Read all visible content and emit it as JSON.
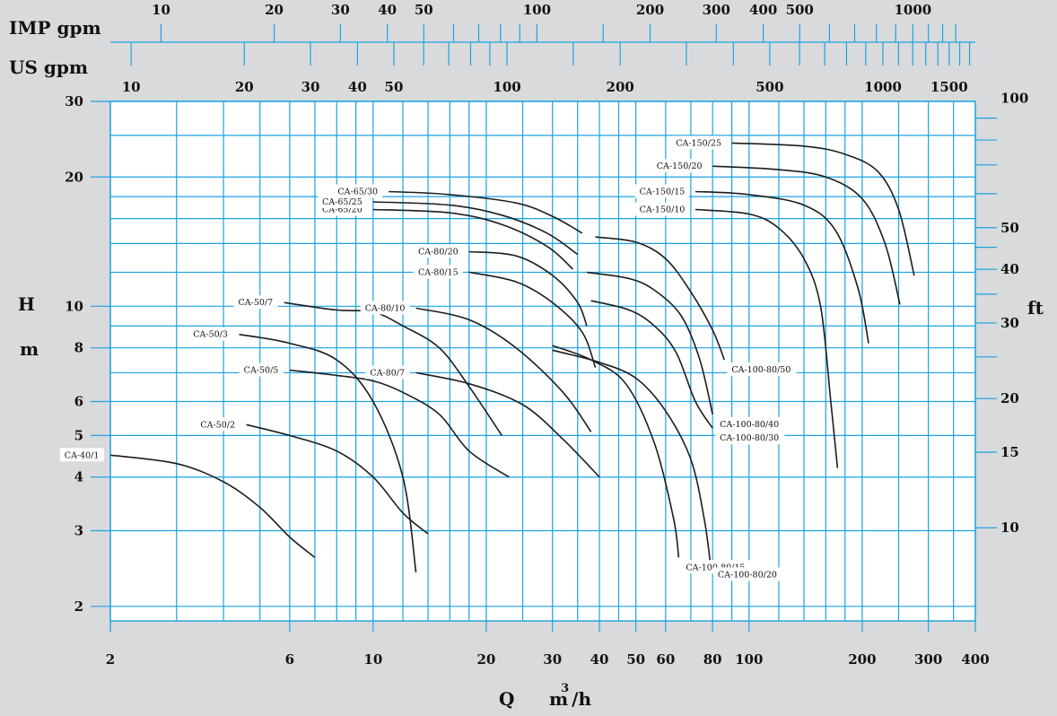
{
  "chart_data": {
    "type": "line",
    "grid": true,
    "x_scale": "log",
    "y_scale": "log",
    "x_label": "Q",
    "x_unit": "m",
    "x_unit_sup": "3",
    "x_unit_suffix": "/h",
    "y_label_left": "H",
    "y_unit_left": "m",
    "y_label_right": "ft",
    "xlim": [
      2,
      400
    ],
    "ylim": [
      1.85,
      30
    ],
    "x_ticks": [
      2,
      6,
      10,
      20,
      30,
      40,
      50,
      60,
      80,
      100,
      200,
      300,
      400
    ],
    "x_gridlines": [
      2,
      3,
      4,
      5,
      6,
      7,
      8,
      9,
      10,
      12,
      14,
      16,
      18,
      20,
      25,
      30,
      35,
      40,
      45,
      50,
      60,
      70,
      80,
      90,
      100,
      120,
      140,
      160,
      180,
      200,
      250,
      300,
      350,
      400
    ],
    "y_ticks": [
      2,
      3,
      4,
      5,
      6,
      8,
      10,
      20,
      30
    ],
    "y_gridlines": [
      2,
      3,
      4,
      5,
      6,
      7,
      8,
      9,
      10,
      12,
      14,
      16,
      18,
      20,
      25,
      30
    ],
    "ft_ticks": [
      10,
      15,
      20,
      30,
      40,
      50,
      100
    ],
    "ft_marks": [
      10,
      15,
      20,
      25,
      30,
      35,
      40,
      45,
      50,
      60,
      70,
      80,
      90,
      100
    ],
    "imp_gpm_label": "IMP gpm",
    "imp_gpm_ticks": [
      10,
      20,
      30,
      40,
      50,
      100,
      200,
      300,
      400,
      500,
      1000
    ],
    "imp_gpm_marks": [
      10,
      20,
      30,
      40,
      50,
      60,
      70,
      80,
      90,
      100,
      150,
      200,
      300,
      400,
      500,
      600,
      700,
      800,
      900,
      1000,
      1100,
      1200,
      1300
    ],
    "us_gpm_label": "US gpm",
    "us_gpm_ticks": [
      10,
      20,
      30,
      40,
      50,
      100,
      200,
      500,
      1000,
      1500
    ],
    "us_gpm_marks": [
      10,
      20,
      30,
      40,
      50,
      60,
      70,
      80,
      90,
      100,
      150,
      200,
      300,
      400,
      500,
      600,
      700,
      800,
      900,
      1000,
      1100,
      1200,
      1300,
      1400,
      1500,
      1600,
      1700
    ],
    "series": [
      {
        "name": "CA-40/1",
        "points": [
          [
            2,
            4.5
          ],
          [
            3,
            4.3
          ],
          [
            4,
            3.9
          ],
          [
            5,
            3.4
          ],
          [
            6,
            2.9
          ],
          [
            7,
            2.6
          ]
        ]
      },
      {
        "name": "CA-50/2",
        "points": [
          [
            4.6,
            5.3
          ],
          [
            6,
            5.0
          ],
          [
            8,
            4.6
          ],
          [
            10,
            4.0
          ],
          [
            12,
            3.3
          ],
          [
            14,
            2.95
          ]
        ]
      },
      {
        "name": "CA-50/3",
        "points": [
          [
            4.4,
            8.6
          ],
          [
            6,
            8.2
          ],
          [
            8,
            7.5
          ],
          [
            10,
            6.0
          ],
          [
            12,
            4.0
          ],
          [
            13,
            2.4
          ]
        ]
      },
      {
        "name": "CA-50/5",
        "points": [
          [
            6,
            7.1
          ],
          [
            8,
            6.9
          ],
          [
            10,
            6.7
          ],
          [
            12,
            6.3
          ],
          [
            15,
            5.6
          ],
          [
            18,
            4.6
          ],
          [
            23,
            4.0
          ]
        ]
      },
      {
        "name": "CA-50/7",
        "points": [
          [
            5.8,
            10.2
          ],
          [
            8,
            9.8
          ],
          [
            10,
            9.7
          ],
          [
            12,
            9.0
          ],
          [
            15,
            8.0
          ],
          [
            18,
            6.5
          ],
          [
            22,
            5.0
          ]
        ]
      },
      {
        "name": "CA-80/7",
        "points": [
          [
            13,
            7.0
          ],
          [
            18,
            6.6
          ],
          [
            25,
            5.9
          ],
          [
            32,
            4.9
          ],
          [
            40,
            4.0
          ]
        ]
      },
      {
        "name": "CA-80/10",
        "points": [
          [
            13,
            9.9
          ],
          [
            18,
            9.3
          ],
          [
            24,
            8.0
          ],
          [
            32,
            6.3
          ],
          [
            38,
            5.1
          ]
        ]
      },
      {
        "name": "CA-80/15",
        "points": [
          [
            18,
            12.0
          ],
          [
            24,
            11.4
          ],
          [
            30,
            10.2
          ],
          [
            36,
            8.7
          ],
          [
            39,
            7.2
          ]
        ]
      },
      {
        "name": "CA-80/20",
        "points": [
          [
            18,
            13.4
          ],
          [
            24,
            13.1
          ],
          [
            30,
            11.8
          ],
          [
            35,
            10.2
          ],
          [
            37,
            9.0
          ]
        ]
      },
      {
        "name": "CA-65/20",
        "points": [
          [
            10,
            16.8
          ],
          [
            16,
            16.5
          ],
          [
            22,
            15.5
          ],
          [
            29,
            13.8
          ],
          [
            34,
            12.2
          ]
        ]
      },
      {
        "name": "CA-65/25",
        "points": [
          [
            10,
            17.5
          ],
          [
            16,
            17.2
          ],
          [
            22,
            16.3
          ],
          [
            29,
            14.8
          ],
          [
            35,
            13.2
          ]
        ]
      },
      {
        "name": "CA-65/30",
        "points": [
          [
            11,
            18.5
          ],
          [
            16,
            18.2
          ],
          [
            24,
            17.4
          ],
          [
            30,
            16.2
          ],
          [
            36,
            14.8
          ]
        ]
      },
      {
        "name": "CA-100-80/15",
        "points": [
          [
            30,
            8.1
          ],
          [
            38,
            7.5
          ],
          [
            47,
            6.6
          ],
          [
            56,
            4.8
          ],
          [
            63,
            3.2
          ],
          [
            65,
            2.6
          ]
        ]
      },
      {
        "name": "CA-100-80/20",
        "points": [
          [
            30,
            7.9
          ],
          [
            40,
            7.4
          ],
          [
            50,
            6.8
          ],
          [
            60,
            5.7
          ],
          [
            70,
            4.4
          ],
          [
            76,
            3.2
          ],
          [
            79,
            2.5
          ]
        ]
      },
      {
        "name": "CA-100-80/30",
        "points": [
          [
            38,
            10.3
          ],
          [
            48,
            9.8
          ],
          [
            56,
            9.0
          ],
          [
            64,
            7.8
          ],
          [
            72,
            6.0
          ],
          [
            80,
            5.2
          ]
        ]
      },
      {
        "name": "CA-100-80/40",
        "points": [
          [
            37,
            12.0
          ],
          [
            48,
            11.6
          ],
          [
            56,
            10.9
          ],
          [
            66,
            9.5
          ],
          [
            74,
            7.5
          ],
          [
            80,
            5.6
          ]
        ]
      },
      {
        "name": "CA-100-80/50",
        "points": [
          [
            39,
            14.5
          ],
          [
            50,
            14.1
          ],
          [
            60,
            12.9
          ],
          [
            70,
            10.8
          ],
          [
            80,
            8.8
          ],
          [
            86,
            7.5
          ]
        ]
      },
      {
        "name": "CA-150/10",
        "points": [
          [
            72,
            16.8
          ],
          [
            100,
            16.4
          ],
          [
            120,
            15.2
          ],
          [
            140,
            12.9
          ],
          [
            155,
            10.0
          ],
          [
            165,
            6.0
          ],
          [
            172,
            4.2
          ]
        ]
      },
      {
        "name": "CA-150/15",
        "points": [
          [
            72,
            18.5
          ],
          [
            100,
            18.2
          ],
          [
            140,
            17.2
          ],
          [
            170,
            15.0
          ],
          [
            195,
            11.0
          ],
          [
            208,
            8.2
          ]
        ]
      },
      {
        "name": "CA-150/20",
        "points": [
          [
            80,
            21.2
          ],
          [
            120,
            20.8
          ],
          [
            160,
            20.0
          ],
          [
            200,
            17.8
          ],
          [
            230,
            14.0
          ],
          [
            252,
            10.1
          ]
        ]
      },
      {
        "name": "CA-150/25",
        "points": [
          [
            90,
            24.0
          ],
          [
            140,
            23.6
          ],
          [
            180,
            22.6
          ],
          [
            220,
            20.6
          ],
          [
            250,
            16.8
          ],
          [
            275,
            11.8
          ]
        ]
      }
    ]
  }
}
